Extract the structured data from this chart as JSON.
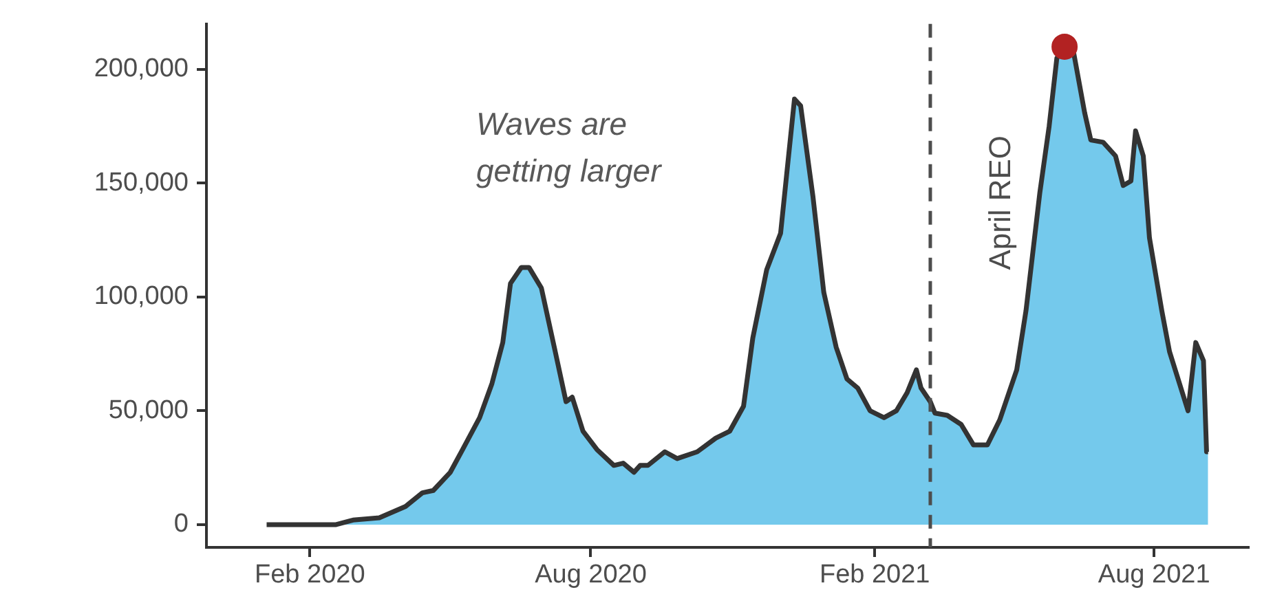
{
  "chart_data": {
    "type": "area",
    "xlim": [
      "2019-11-26",
      "2021-10-01"
    ],
    "ylim": [
      -10000,
      220000
    ],
    "xticks": [
      {
        "value": "2020-02-01",
        "label": "Feb 2020"
      },
      {
        "value": "2020-08-01",
        "label": "Aug 2020"
      },
      {
        "value": "2021-02-01",
        "label": "Feb 2021"
      },
      {
        "value": "2021-08-01",
        "label": "Aug 2021"
      }
    ],
    "yticks": [
      {
        "value": 0,
        "label": "0"
      },
      {
        "value": 50000,
        "label": "50,000"
      },
      {
        "value": 100000,
        "label": "100,000"
      },
      {
        "value": 150000,
        "label": "150,000"
      },
      {
        "value": 200000,
        "label": "200,000"
      }
    ],
    "series": [
      {
        "color": "#74c9ec",
        "x": [
          "2020-01-04",
          "2020-02-18",
          "2020-02-29",
          "2020-03-17",
          "2020-04-03",
          "2020-04-14",
          "2020-04-21",
          "2020-05-02",
          "2020-05-10",
          "2020-05-21",
          "2020-05-29",
          "2020-06-05",
          "2020-06-10",
          "2020-06-17",
          "2020-06-22",
          "2020-06-30",
          "2020-07-09",
          "2020-07-16",
          "2020-07-20",
          "2020-07-27",
          "2020-08-05",
          "2020-08-16",
          "2020-08-22",
          "2020-08-29",
          "2020-09-02",
          "2020-09-07",
          "2020-09-18",
          "2020-09-26",
          "2020-10-09",
          "2020-10-21",
          "2020-10-30",
          "2020-11-08",
          "2020-11-14",
          "2020-11-23",
          "2020-12-02",
          "2020-12-11",
          "2020-12-15",
          "2020-12-23",
          "2020-12-30",
          "2021-01-07",
          "2021-01-14",
          "2021-01-21",
          "2021-01-29",
          "2021-02-07",
          "2021-02-15",
          "2021-02-22",
          "2021-02-28",
          "2021-03-03",
          "2021-03-09",
          "2021-03-12",
          "2021-03-20",
          "2021-03-29",
          "2021-04-06",
          "2021-04-15",
          "2021-04-23",
          "2021-05-04",
          "2021-05-10",
          "2021-05-19",
          "2021-05-25",
          "2021-05-30",
          "2021-06-04",
          "2021-06-10",
          "2021-06-17",
          "2021-06-21",
          "2021-06-29",
          "2021-07-07",
          "2021-07-12",
          "2021-07-17",
          "2021-07-20",
          "2021-07-25",
          "2021-07-29",
          "2021-08-06",
          "2021-08-11",
          "2021-08-23",
          "2021-08-28",
          "2021-09-02",
          "2021-09-04",
          "2021-09-05"
        ],
        "values": [
          0,
          0,
          2000,
          3000,
          8000,
          14000,
          15000,
          23000,
          33000,
          47000,
          62000,
          80000,
          106000,
          113000,
          113000,
          104000,
          76000,
          54000,
          56000,
          41000,
          33000,
          26000,
          27000,
          23000,
          26000,
          26000,
          32000,
          29000,
          32000,
          38000,
          41000,
          52000,
          82000,
          112000,
          128000,
          187000,
          184000,
          144000,
          102000,
          78000,
          64000,
          60000,
          50000,
          47000,
          50000,
          58000,
          68000,
          60000,
          54000,
          49000,
          48000,
          44000,
          35000,
          35000,
          46000,
          68000,
          94000,
          146000,
          175000,
          205000,
          210000,
          207000,
          181000,
          169000,
          168000,
          162000,
          149000,
          151000,
          173000,
          162000,
          126000,
          94000,
          76000,
          50000,
          80000,
          72000,
          32000,
          32000
        ]
      },
      {
        "type": "scatter",
        "color": "#b22222",
        "marker": "circle",
        "x": [
          "2021-06-04"
        ],
        "values": [
          210000
        ]
      }
    ],
    "ref_lines": [
      {
        "axis": "x",
        "value": "2021-03-09",
        "label": "April REO",
        "color": "#4d4d4d",
        "line_style": "dashed"
      }
    ],
    "annotations": [
      "Waves are getting larger"
    ],
    "legend": false
  }
}
